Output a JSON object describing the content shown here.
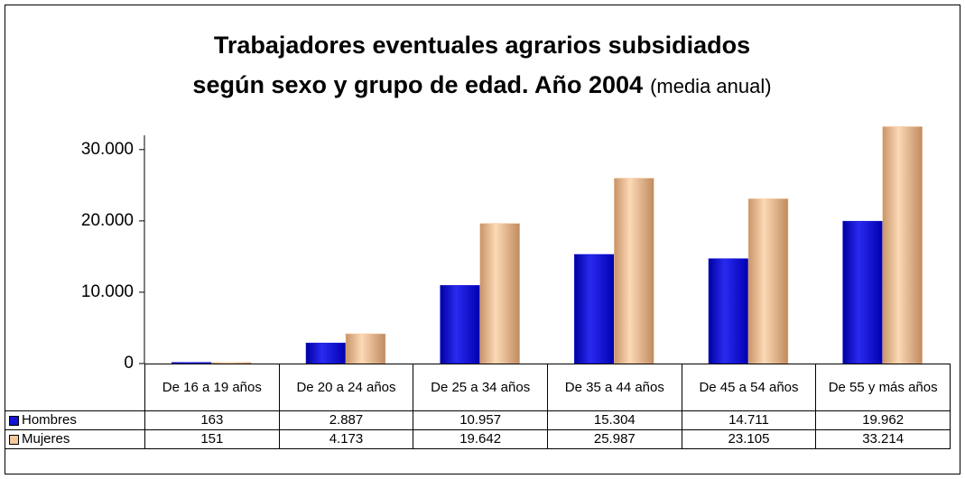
{
  "chart_data": {
    "type": "bar",
    "title_lines": [
      "Trabajadores eventuales agrarios subsidiados",
      "según sexo y grupo de edad. Año 2004"
    ],
    "subtitle": "(media anual)",
    "categories": [
      "De 16 a 19 años",
      "De 20 a 24 años",
      "De 25 a 34 años",
      "De 35 a 44 años",
      "De 45 a 54 años",
      "De 55 y más años"
    ],
    "series": [
      {
        "name": "Hombres",
        "color": "#1414d2",
        "values": [
          163,
          2887,
          10957,
          15304,
          14711,
          19962
        ],
        "value_labels": [
          "163",
          "2.887",
          "10.957",
          "15.304",
          "14.711",
          "19.962"
        ]
      },
      {
        "name": "Mujeres",
        "color": "#f6c79c",
        "values": [
          151,
          4173,
          19642,
          25987,
          23105,
          33214
        ],
        "value_labels": [
          "151",
          "4.173",
          "19.642",
          "25.987",
          "23.105",
          "33.214"
        ]
      }
    ],
    "ylim": [
      0,
      32000
    ],
    "yticks": [
      0,
      {
        "value": 10000,
        "label": "10.000"
      },
      {
        "value": 20000,
        "label": "20.000"
      },
      {
        "value": 30000,
        "label": "30.000"
      }
    ],
    "grid": false
  }
}
